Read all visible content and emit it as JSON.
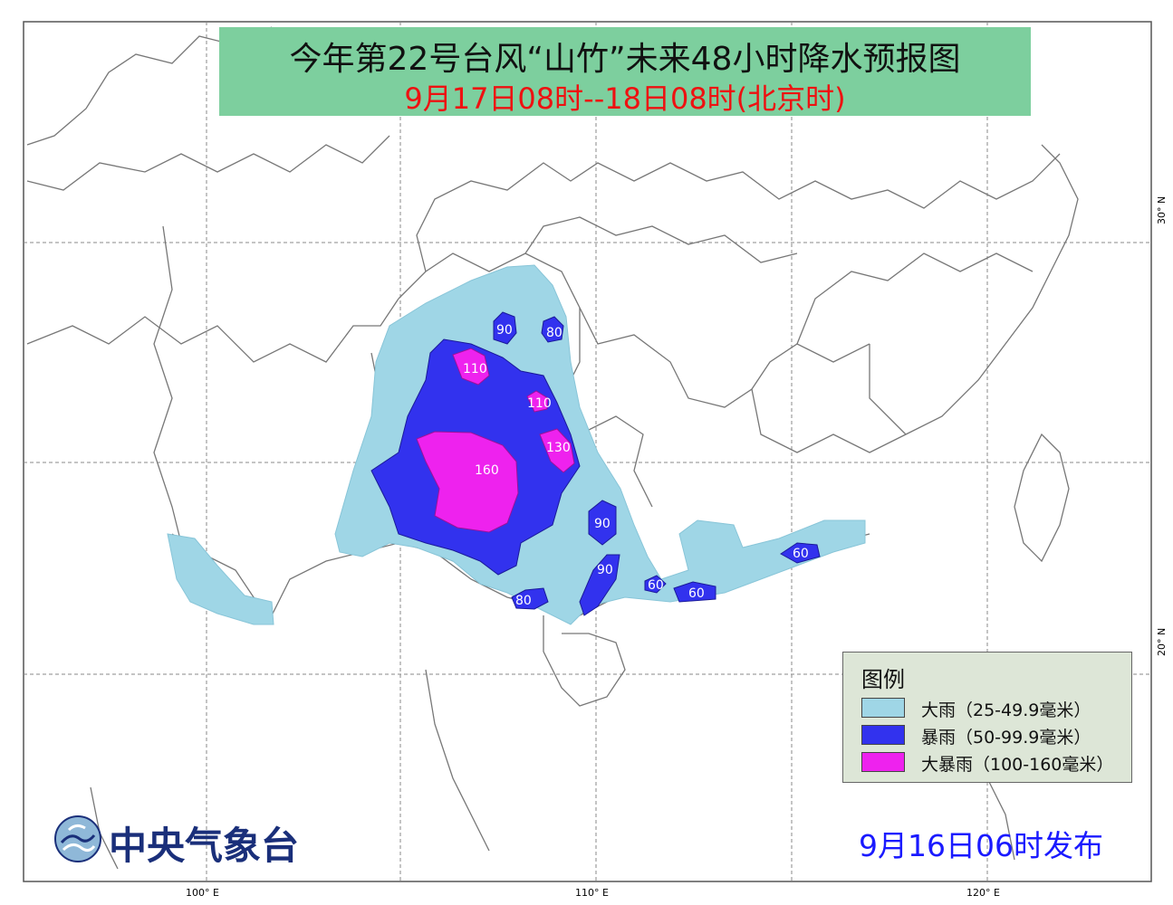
{
  "title": {
    "line1": "今年第22号台风“山竹”未来48小时降水预报图",
    "line2": "9月17日08时--18日08时(北京时)"
  },
  "axes": {
    "lon_labels": [
      "100° E",
      "110° E",
      "120° E"
    ],
    "lat_labels": [
      "30° N",
      "20° N"
    ]
  },
  "contour_labels": {
    "a": "90",
    "b": "80",
    "c": "110",
    "d": "110",
    "e": "130",
    "f": "160",
    "g": "90",
    "h": "90",
    "i": "60",
    "j": "60",
    "k": "60",
    "l": "80"
  },
  "legend": {
    "title": "图例",
    "items": [
      {
        "label": "大雨（25-49.9毫米）",
        "color": "#9fd6e6"
      },
      {
        "label": "暴雨（50-99.9毫米）",
        "color": "#3232ee"
      },
      {
        "label": "大暴雨（100-160毫米）",
        "color": "#ee22ee"
      }
    ]
  },
  "agency": {
    "name": "中央气象台"
  },
  "published": "9月16日06时发布",
  "colors": {
    "heavy_rain": "#9fd6e6",
    "rainstorm": "#3232ee",
    "heavy_rainstorm": "#ee22ee",
    "title_bg": "#7dcf9e"
  }
}
